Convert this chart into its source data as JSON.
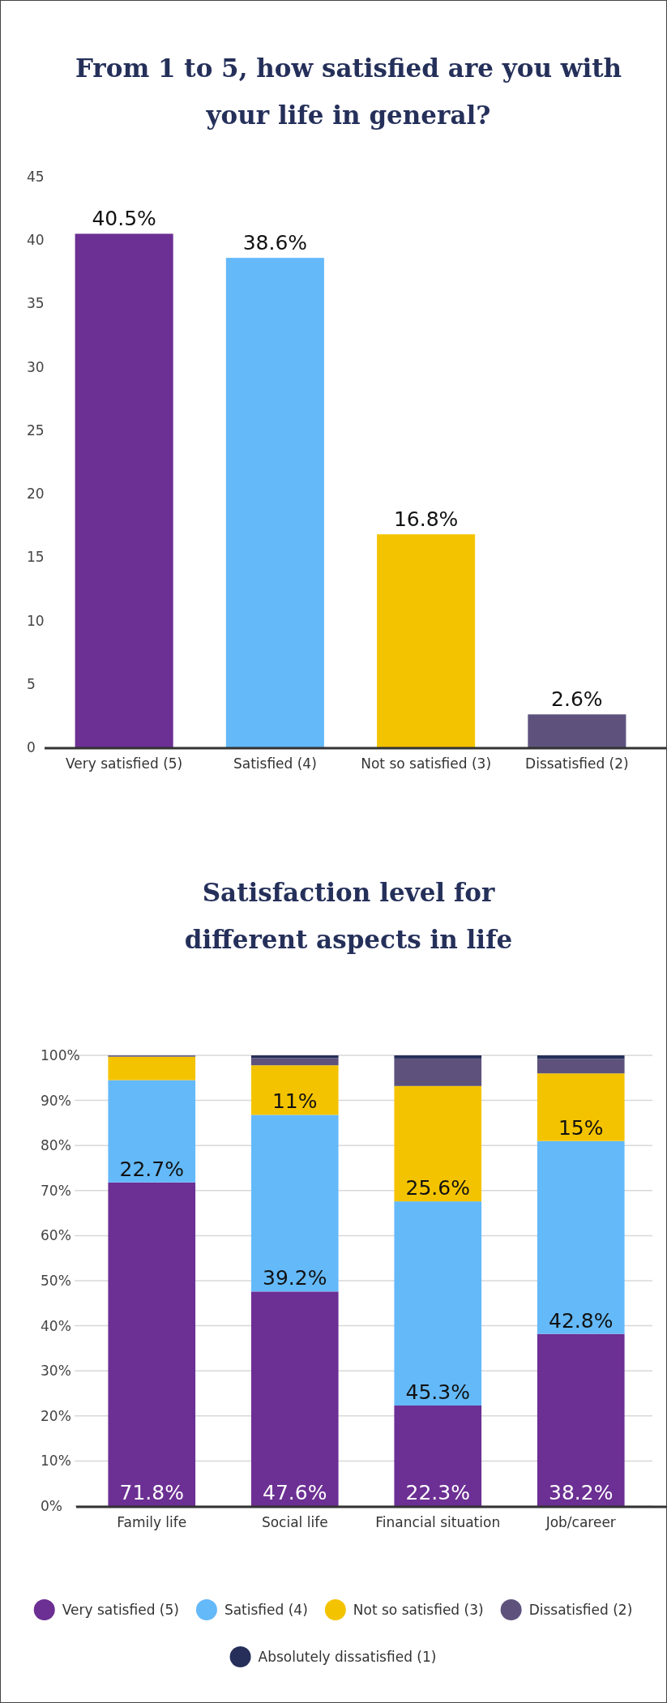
{
  "chart_data": [
    {
      "type": "bar",
      "title": "From 1 to 5, how satisfied are you with your life in general?",
      "categories": [
        "Very satisfied (5)",
        "Satisfied (4)",
        "Not so satisfied (3)",
        "Dissatisfied (2)"
      ],
      "values": [
        40.5,
        38.6,
        16.8,
        2.6
      ],
      "value_labels": [
        "40.5%",
        "38.6%",
        "16.8%",
        "2.6%"
      ],
      "colors": [
        "#6c2f93",
        "#64b9f9",
        "#f4c300",
        "#5e527d"
      ],
      "ylim": [
        0,
        45
      ],
      "yticks": [
        0,
        5,
        10,
        15,
        20,
        25,
        30,
        35,
        40,
        45
      ],
      "grid": false,
      "legend": false
    },
    {
      "type": "bar",
      "title": "Satisfaction level for different aspects in life",
      "stacked": true,
      "categories": [
        "Family life",
        "Social life",
        "Financial situation",
        "Job/career"
      ],
      "series": [
        {
          "name": "Very satisfied (5)",
          "color": "#6c2f93",
          "values": [
            71.8,
            47.6,
            22.3,
            38.2
          ],
          "value_labels": [
            "71.8%",
            "47.6%",
            "22.3%",
            "38.2%"
          ]
        },
        {
          "name": "Satisfied (4)",
          "color": "#64b9f9",
          "values": [
            22.7,
            39.2,
            45.3,
            42.8
          ],
          "value_labels": [
            "22.7%",
            "39.2%",
            "45.3%",
            "42.8%"
          ]
        },
        {
          "name": "Not so satisfied (3)",
          "color": "#f4c300",
          "values": [
            5.2,
            11,
            25.6,
            15
          ],
          "value_labels": [
            null,
            "11%",
            "25.6%",
            "15%"
          ]
        },
        {
          "name": "Dissatisfied (2)",
          "color": "#5e527d",
          "values": [
            0.2,
            1.6,
            6.1,
            3.2
          ]
        },
        {
          "name": "Absolutely dissatisfied (1)",
          "color": "#252f5a",
          "values": [
            0.1,
            0.6,
            0.7,
            0.8
          ]
        }
      ],
      "ylim": [
        0,
        100
      ],
      "yticks": [
        {
          "value": 0,
          "label": "0%"
        },
        {
          "value": 10,
          "label": "10%"
        },
        {
          "value": 20,
          "label": "20%"
        },
        {
          "value": 30,
          "label": "30%"
        },
        {
          "value": 40,
          "label": "40%"
        },
        {
          "value": 50,
          "label": "50%"
        },
        {
          "value": 60,
          "label": "60%"
        },
        {
          "value": 70,
          "label": "70%"
        },
        {
          "value": 80,
          "label": "80%"
        },
        {
          "value": 90,
          "label": "90%"
        },
        {
          "value": 100,
          "label": "100%"
        }
      ],
      "grid": "y",
      "legend": "bottom"
    }
  ]
}
